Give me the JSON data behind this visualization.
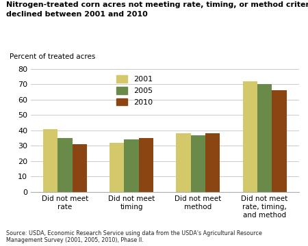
{
  "title_line1": "Nitrogen-treated corn acres not meeting rate, timing, or method criteria",
  "title_line2": "declined between 2001 and 2010",
  "ylabel": "Percent of treated acres",
  "categories": [
    "Did not meet\nrate",
    "Did not meet\ntiming",
    "Did not meet\nmethod",
    "Did not meet\nrate, timing,\nand method"
  ],
  "series": {
    "2001": [
      41,
      32,
      38,
      72
    ],
    "2005": [
      35,
      34,
      37,
      70
    ],
    "2010": [
      31,
      35,
      38,
      66
    ]
  },
  "colors": {
    "2001": "#D4C96A",
    "2005": "#6A8A4A",
    "2010": "#8B4513"
  },
  "ylim": [
    0,
    80
  ],
  "yticks": [
    0,
    10,
    20,
    30,
    40,
    50,
    60,
    70,
    80
  ],
  "bar_width": 0.22,
  "source": "Source: USDA, Economic Research Service using data from the USDA's Agricultural Resource\nManagement Survey (2001, 2005, 2010), Phase II.",
  "legend_order": [
    "2001",
    "2005",
    "2010"
  ],
  "background_color": "#ffffff",
  "grid_color": "#cccccc"
}
